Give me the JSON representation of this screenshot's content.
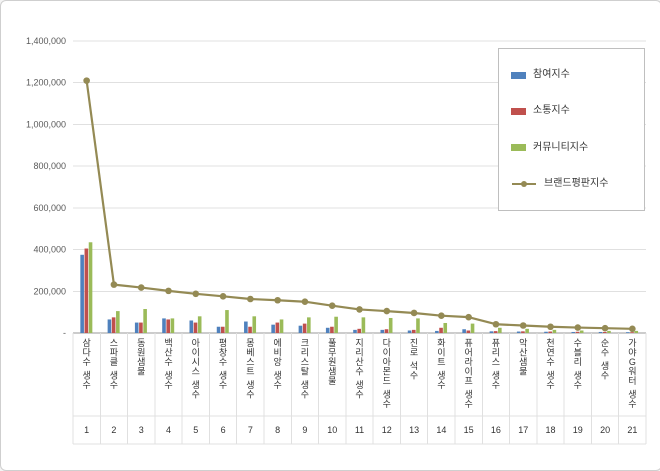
{
  "chart_data": {
    "type": "bar",
    "title": "",
    "categories": [
      "삼다수 생수",
      "스파클 생수",
      "동원샘물",
      "백산수 생수",
      "아이시스 생수",
      "평창수 생수",
      "몽베스트 생수",
      "에비앙 생수",
      "크리스탈 생수",
      "풀무원샘물",
      "지리산수 생수",
      "다이아몬드 생수",
      "진로 석수",
      "화이트 생수",
      "퓨어라이프 생수",
      "퓨리스 생수",
      "악산샘물",
      "천연수 생수",
      "수블리 생수",
      "순수 생수",
      "가야G워터 생수"
    ],
    "index_labels": [
      "1",
      "2",
      "3",
      "4",
      "5",
      "6",
      "7",
      "8",
      "9",
      "10",
      "11",
      "12",
      "13",
      "14",
      "15",
      "16",
      "17",
      "18",
      "19",
      "20",
      "21"
    ],
    "ylim": [
      0,
      1400000
    ],
    "ytick_step": 200000,
    "ytick_labels": [
      "-",
      "200,000",
      "400,000",
      "600,000",
      "800,000",
      "1,000,000",
      "1,200,000",
      "1,400,000"
    ],
    "grid": true,
    "legend_position": "top-right",
    "series": [
      {
        "name": "참여지수",
        "type": "bar",
        "color": "#4F81BD",
        "values": [
          375000,
          65000,
          50000,
          70000,
          60000,
          30000,
          55000,
          40000,
          35000,
          25000,
          15000,
          15000,
          12000,
          10000,
          18000,
          8000,
          7000,
          6000,
          5000,
          5000,
          4000
        ]
      },
      {
        "name": "소통지수",
        "type": "bar",
        "color": "#C0504D",
        "values": [
          405000,
          75000,
          50000,
          65000,
          50000,
          30000,
          30000,
          50000,
          45000,
          30000,
          20000,
          18000,
          15000,
          25000,
          12000,
          9000,
          8000,
          7000,
          6000,
          5000,
          4000
        ]
      },
      {
        "name": "커뮤니티지수",
        "type": "bar",
        "color": "#9BBB59",
        "values": [
          435000,
          105000,
          115000,
          70000,
          80000,
          110000,
          80000,
          65000,
          75000,
          78000,
          75000,
          72000,
          70000,
          48000,
          45000,
          25000,
          20000,
          15000,
          12000,
          10000,
          10000
        ]
      },
      {
        "name": "브랜드평판지수",
        "type": "line",
        "color": "#948A54",
        "values": [
          1210000,
          232000,
          218000,
          202000,
          188000,
          176000,
          163000,
          157000,
          150000,
          131000,
          113000,
          105000,
          96000,
          83000,
          76000,
          42000,
          36000,
          30000,
          26000,
          23000,
          20000
        ]
      }
    ]
  }
}
